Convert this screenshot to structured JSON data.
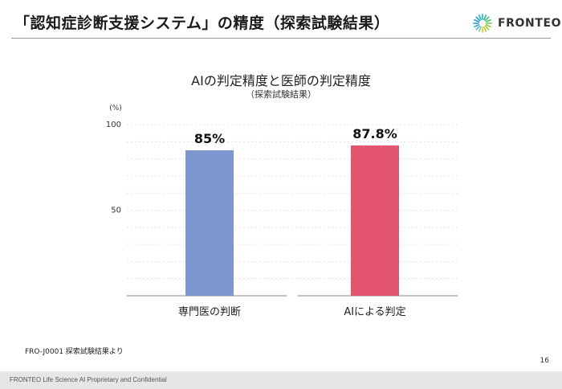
{
  "slide": {
    "title": "「認知症診断支援システム」の精度（探索試験結果）",
    "logo_text": "FRONTEO",
    "logo_icon": "fronteo-burst-icon",
    "source_note": "FRO-J0001 探索試験結果より",
    "footer_text": "FRONTEO Life Science AI  Proprietary and Confidential",
    "page_number": "16"
  },
  "chart_data": {
    "type": "bar",
    "title": "AIの判定精度と医師の判定精度",
    "subtitle": "（探索試験結果）",
    "ylabel": "(%)",
    "ylim": [
      0,
      100
    ],
    "yticks": [
      50,
      100
    ],
    "grid": true,
    "categories": [
      "専門医の判断",
      "AIによる判定"
    ],
    "values": [
      85,
      87.8
    ],
    "value_labels": [
      "85%",
      "87.8%"
    ],
    "colors": [
      "#7f97d1",
      "#e35470"
    ]
  }
}
